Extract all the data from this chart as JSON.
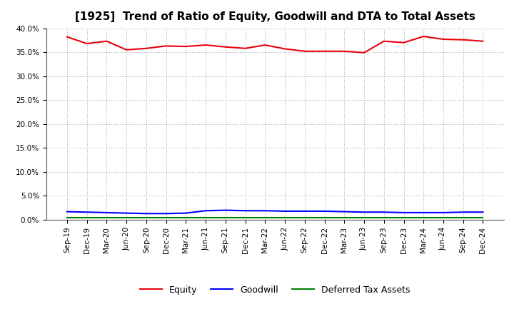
{
  "title": "[1925]  Trend of Ratio of Equity, Goodwill and DTA to Total Assets",
  "x_labels": [
    "Sep-19",
    "Dec-19",
    "Mar-20",
    "Jun-20",
    "Sep-20",
    "Dec-20",
    "Mar-21",
    "Jun-21",
    "Sep-21",
    "Dec-21",
    "Mar-22",
    "Jun-22",
    "Sep-22",
    "Dec-22",
    "Mar-23",
    "Jun-23",
    "Sep-23",
    "Dec-23",
    "Mar-24",
    "Jun-24",
    "Sep-24",
    "Dec-24"
  ],
  "equity": [
    38.2,
    36.8,
    37.3,
    35.5,
    35.8,
    36.3,
    36.2,
    36.5,
    36.1,
    35.8,
    36.5,
    35.7,
    35.2,
    35.2,
    35.2,
    34.9,
    37.3,
    37.0,
    38.3,
    37.7,
    37.6,
    37.3
  ],
  "goodwill": [
    1.7,
    1.6,
    1.5,
    1.4,
    1.3,
    1.3,
    1.4,
    1.9,
    2.0,
    1.9,
    1.9,
    1.8,
    1.8,
    1.8,
    1.7,
    1.6,
    1.6,
    1.5,
    1.5,
    1.5,
    1.6,
    1.6
  ],
  "dta": [
    0.5,
    0.5,
    0.5,
    0.5,
    0.5,
    0.5,
    0.5,
    0.5,
    0.5,
    0.5,
    0.5,
    0.5,
    0.5,
    0.5,
    0.5,
    0.5,
    0.5,
    0.5,
    0.5,
    0.5,
    0.5,
    0.5
  ],
  "equity_color": "#e8000d",
  "goodwill_color": "#0000ff",
  "dta_color": "#008000",
  "ylim": [
    0,
    40
  ],
  "yticks": [
    0,
    5,
    10,
    15,
    20,
    25,
    30,
    35,
    40
  ],
  "legend_labels": [
    "Equity",
    "Goodwill",
    "Deferred Tax Assets"
  ],
  "bg_color": "#ffffff",
  "grid_color": "#aaaaaa",
  "title_fontsize": 11,
  "tick_fontsize": 7.5,
  "legend_fontsize": 9
}
